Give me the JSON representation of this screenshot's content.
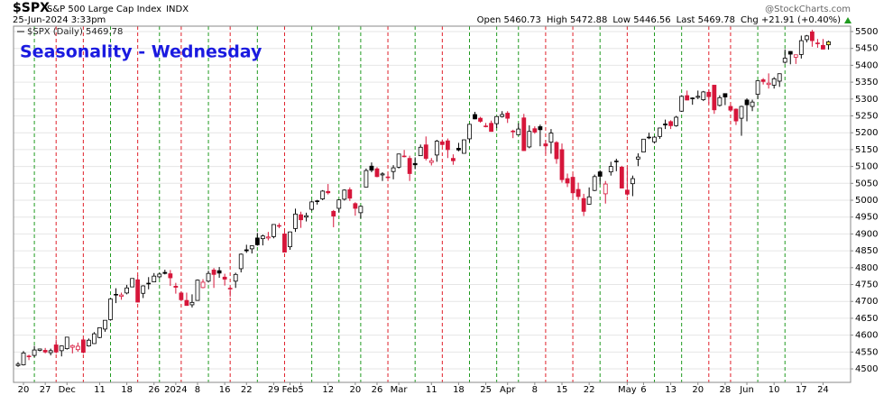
{
  "chart_data": {
    "type": "candlestick",
    "symbol": "$SPX",
    "name": "S&P 500 Large Cap Index",
    "exchange": "INDX",
    "timestamp": "25-Jun-2024 3:33pm",
    "quote": [
      "Open 5460.73",
      "High 5472.88",
      "Low 5446.56",
      "Last 5469.78",
      "Chg +21.91 (+0.40%)"
    ],
    "watermark": "@StockCharts.com",
    "title": "Seasonality - Wednesday",
    "legend": "$SPX (Daily) 5469.78",
    "up_color": "#000000",
    "down_color": "#d6163a",
    "wednesday_up_color": "#1f9a1f",
    "wednesday_down_color": "#e0202a",
    "ylim": [
      4460,
      5516
    ],
    "yticks": [
      4500,
      4550,
      4600,
      4650,
      4700,
      4750,
      4800,
      4850,
      4900,
      4950,
      5000,
      5050,
      5100,
      5150,
      5200,
      5250,
      5300,
      5350,
      5400,
      5450,
      5500
    ],
    "categories": [
      null,
      "20",
      null,
      null,
      null,
      "27",
      null,
      null,
      null,
      "Dec",
      null,
      null,
      null,
      null,
      null,
      "11",
      null,
      null,
      null,
      null,
      "18",
      null,
      null,
      null,
      null,
      "26",
      null,
      null,
      null,
      "2024",
      null,
      null,
      null,
      "8",
      null,
      null,
      null,
      null,
      "16",
      null,
      null,
      null,
      "22",
      null,
      null,
      null,
      null,
      "29",
      null,
      null,
      "Feb",
      null,
      "5",
      null,
      null,
      null,
      null,
      "12",
      null,
      null,
      null,
      null,
      "20",
      null,
      null,
      null,
      "26",
      null,
      null,
      null,
      "Mar",
      null,
      null,
      null,
      null,
      null,
      "11",
      null,
      null,
      null,
      null,
      "18",
      null,
      null,
      null,
      null,
      "25",
      null,
      null,
      null,
      "Apr",
      null,
      null,
      null,
      null,
      "8",
      null,
      null,
      null,
      null,
      "15",
      null,
      null,
      null,
      null,
      "22",
      null,
      null,
      null,
      null,
      null,
      null,
      "May",
      null,
      null,
      "6",
      null,
      null,
      null,
      null,
      "13",
      null,
      null,
      null,
      null,
      "20",
      null,
      null,
      null,
      null,
      "28",
      null,
      null,
      null,
      "Jun",
      null,
      null,
      null,
      null,
      "10",
      null,
      null,
      null,
      null,
      "17",
      null,
      null,
      null,
      "24",
      null
    ],
    "wednesdays": [
      3,
      7,
      12,
      17,
      22,
      26,
      30,
      35,
      39,
      44,
      49,
      54,
      59,
      63,
      68,
      73,
      78,
      83,
      88,
      92,
      97,
      102,
      107,
      112,
      117,
      122,
      127,
      131,
      136,
      141
    ],
    "series": [
      {
        "name": "$SPX",
        "values": [
          [
            4510,
            4520,
            4506,
            4514
          ],
          [
            4512,
            4553,
            4510,
            4547
          ],
          [
            4538,
            4542,
            4526,
            4538
          ],
          [
            4540,
            4568,
            4535,
            4556
          ],
          [
            4555,
            4560,
            4552,
            4559
          ],
          [
            4555,
            4562,
            4546,
            4550
          ],
          [
            4548,
            4560,
            4540,
            4554
          ],
          [
            4571,
            4587,
            4546,
            4550
          ],
          [
            4554,
            4569,
            4537,
            4568
          ],
          [
            4560,
            4595,
            4557,
            4594
          ],
          [
            4564,
            4572,
            4546,
            4569
          ],
          [
            4557,
            4578,
            4551,
            4567
          ],
          [
            4586,
            4590,
            4546,
            4549
          ],
          [
            4568,
            4590,
            4566,
            4585
          ],
          [
            4575,
            4609,
            4574,
            4604
          ],
          [
            4593,
            4623,
            4591,
            4622
          ],
          [
            4618,
            4644,
            4610,
            4644
          ],
          [
            4646,
            4709,
            4643,
            4707
          ],
          [
            4721,
            4739,
            4695,
            4720
          ],
          [
            4715,
            4726,
            4705,
            4719
          ],
          [
            4725,
            4749,
            4721,
            4740
          ],
          [
            4743,
            4768,
            4743,
            4768
          ],
          [
            4764,
            4778,
            4697,
            4698
          ],
          [
            4724,
            4748,
            4710,
            4746
          ],
          [
            4753,
            4772,
            4736,
            4754
          ],
          [
            4758,
            4784,
            4758,
            4775
          ],
          [
            4773,
            4785,
            4768,
            4781
          ],
          [
            4786,
            4794,
            4780,
            4783
          ],
          [
            4782,
            4793,
            4746,
            4770
          ],
          [
            4745,
            4755,
            4723,
            4742
          ],
          [
            4725,
            4730,
            4704,
            4705
          ],
          [
            4703,
            4726,
            4687,
            4688
          ],
          [
            4690,
            4721,
            4682,
            4697
          ],
          [
            4703,
            4765,
            4703,
            4763
          ],
          [
            4741,
            4766,
            4739,
            4757
          ],
          [
            4760,
            4791,
            4756,
            4783
          ],
          [
            4793,
            4799,
            4740,
            4780
          ],
          [
            4791,
            4802,
            4770,
            4784
          ],
          [
            4772,
            4782,
            4747,
            4766
          ],
          [
            4739,
            4744,
            4714,
            4739
          ],
          [
            4760,
            4785,
            4740,
            4780
          ],
          [
            4797,
            4842,
            4786,
            4840
          ],
          [
            4853,
            4868,
            4844,
            4850
          ],
          [
            4856,
            4866,
            4842,
            4865
          ],
          [
            4888,
            4903,
            4865,
            4868
          ],
          [
            4886,
            4898,
            4866,
            4894
          ],
          [
            4888,
            4906,
            4881,
            4891
          ],
          [
            4892,
            4929,
            4887,
            4928
          ],
          [
            4925,
            4932,
            4917,
            4925
          ],
          [
            4900,
            4907,
            4845,
            4846
          ],
          [
            4862,
            4907,
            4853,
            4906
          ],
          [
            4916,
            4975,
            4906,
            4959
          ],
          [
            4957,
            4966,
            4918,
            4942
          ],
          [
            4950,
            4963,
            4937,
            4954
          ],
          [
            4973,
            4999,
            4969,
            4995
          ],
          [
            4996,
            5001,
            4987,
            4998
          ],
          [
            5004,
            5030,
            5000,
            5027
          ],
          [
            5026,
            5048,
            5017,
            5022
          ],
          [
            4967,
            4971,
            4920,
            4953
          ],
          [
            4976,
            5002,
            4964,
            5001
          ],
          [
            5003,
            5032,
            4999,
            5030
          ],
          [
            5031,
            5038,
            4998,
            5006
          ],
          [
            4990,
            4994,
            4954,
            4976
          ],
          [
            4963,
            4984,
            4946,
            4982
          ],
          [
            5039,
            5094,
            5039,
            5088
          ],
          [
            5101,
            5112,
            5083,
            5089
          ],
          [
            5093,
            5098,
            5068,
            5070
          ],
          [
            5075,
            5083,
            5057,
            5078
          ],
          [
            5068,
            5078,
            5061,
            5069
          ],
          [
            5085,
            5104,
            5062,
            5096
          ],
          [
            5098,
            5138,
            5094,
            5137
          ],
          [
            5131,
            5149,
            5127,
            5131
          ],
          [
            5124,
            5132,
            5057,
            5079
          ],
          [
            5109,
            5127,
            5092,
            5105
          ],
          [
            5132,
            5165,
            5132,
            5157
          ],
          [
            5164,
            5189,
            5118,
            5124
          ],
          [
            5112,
            5125,
            5103,
            5117
          ],
          [
            5134,
            5179,
            5114,
            5175
          ],
          [
            5173,
            5180,
            5161,
            5165
          ],
          [
            5176,
            5183,
            5125,
            5150
          ],
          [
            5124,
            5136,
            5105,
            5117
          ],
          [
            5154,
            5170,
            5145,
            5149
          ],
          [
            5139,
            5180,
            5139,
            5179
          ],
          [
            5182,
            5225,
            5172,
            5225
          ],
          [
            5254,
            5262,
            5240,
            5241
          ],
          [
            5243,
            5247,
            5230,
            5234
          ],
          [
            5220,
            5229,
            5216,
            5218
          ],
          [
            5228,
            5236,
            5203,
            5204
          ],
          [
            5227,
            5249,
            5214,
            5248
          ],
          [
            5248,
            5264,
            5245,
            5254
          ],
          [
            5258,
            5264,
            5229,
            5243
          ],
          [
            5204,
            5209,
            5184,
            5205
          ],
          [
            5194,
            5228,
            5194,
            5211
          ],
          [
            5244,
            5256,
            5146,
            5147
          ],
          [
            5158,
            5222,
            5154,
            5204
          ],
          [
            5212,
            5219,
            5197,
            5202
          ],
          [
            5218,
            5224,
            5160,
            5209
          ],
          [
            5167,
            5178,
            5138,
            5161
          ],
          [
            5172,
            5211,
            5138,
            5199
          ],
          [
            5171,
            5175,
            5108,
            5123
          ],
          [
            5150,
            5168,
            5052,
            5061
          ],
          [
            5064,
            5079,
            5039,
            5051
          ],
          [
            5068,
            5077,
            5007,
            5022
          ],
          [
            5032,
            5052,
            5001,
            5011
          ],
          [
            5005,
            5019,
            4953,
            4967
          ],
          [
            4988,
            5038,
            4987,
            5010
          ],
          [
            5029,
            5076,
            5027,
            5070
          ],
          [
            5084,
            5089,
            5047,
            5071
          ],
          [
            5019,
            5057,
            4990,
            5048
          ],
          [
            5084,
            5114,
            5073,
            5100
          ],
          [
            5114,
            5123,
            5086,
            5116
          ],
          [
            5098,
            5102,
            5035,
            5036
          ],
          [
            5030,
            5096,
            5013,
            5018
          ],
          [
            5049,
            5073,
            5012,
            5064
          ],
          [
            5122,
            5139,
            5101,
            5128
          ],
          [
            5143,
            5181,
            5143,
            5181
          ],
          [
            5187,
            5200,
            5181,
            5187
          ],
          [
            5173,
            5190,
            5168,
            5187
          ],
          [
            5189,
            5215,
            5182,
            5214
          ],
          [
            5226,
            5239,
            5211,
            5223
          ],
          [
            5233,
            5237,
            5211,
            5221
          ],
          [
            5221,
            5250,
            5218,
            5246
          ],
          [
            5264,
            5311,
            5262,
            5308
          ],
          [
            5310,
            5325,
            5296,
            5297
          ],
          [
            5303,
            5305,
            5283,
            5303
          ],
          [
            5305,
            5325,
            5300,
            5308
          ],
          [
            5298,
            5324,
            5294,
            5321
          ],
          [
            5320,
            5329,
            5286,
            5307
          ],
          [
            5341,
            5342,
            5256,
            5268
          ],
          [
            5281,
            5311,
            5278,
            5304
          ],
          [
            5316,
            5316,
            5282,
            5306
          ],
          [
            5278,
            5283,
            5262,
            5267
          ],
          [
            5270,
            5272,
            5223,
            5235
          ],
          [
            5243,
            5280,
            5191,
            5278
          ],
          [
            5297,
            5302,
            5234,
            5283
          ],
          [
            5278,
            5298,
            5264,
            5291
          ],
          [
            5314,
            5354,
            5300,
            5354
          ],
          [
            5357,
            5362,
            5343,
            5352
          ],
          [
            5343,
            5376,
            5331,
            5347
          ],
          [
            5341,
            5365,
            5331,
            5360
          ],
          [
            5353,
            5376,
            5336,
            5375
          ],
          [
            5409,
            5447,
            5405,
            5421
          ],
          [
            5441,
            5442,
            5403,
            5433
          ],
          [
            5424,
            5432,
            5404,
            5431
          ],
          [
            5432,
            5488,
            5420,
            5473
          ],
          [
            5476,
            5490,
            5468,
            5487
          ],
          [
            5499,
            5505,
            5455,
            5473
          ],
          [
            5466,
            5478,
            5452,
            5465
          ],
          [
            5459,
            5478,
            5447,
            5448
          ],
          [
            5460.73,
            5472.88,
            5446.56,
            5469.78
          ]
        ]
      }
    ]
  }
}
